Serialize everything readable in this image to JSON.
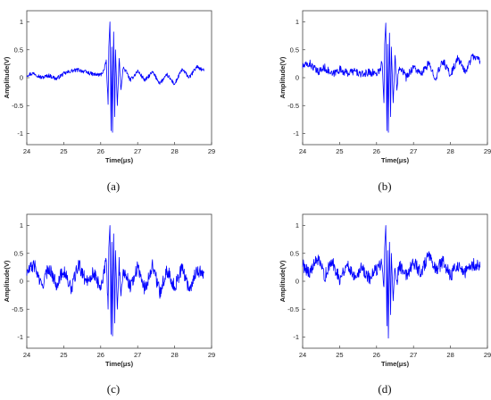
{
  "chart_data": [
    {
      "type": "line",
      "panel_label": "(a)",
      "xlabel": "Time(μs)",
      "ylabel": "Amplitude(V)",
      "xlim": [
        24,
        29
      ],
      "ylim": [
        -1.2,
        1.2
      ],
      "xticks": [
        "24",
        "25",
        "26",
        "27",
        "28",
        "29"
      ],
      "yticks": [
        "-1",
        "-0.5",
        "0",
        "0.5",
        "1"
      ],
      "grid": false,
      "series": [
        {
          "color": "#0000ff",
          "x": [
            24.0,
            24.2,
            24.4,
            24.6,
            24.8,
            25.0,
            25.2,
            25.4,
            25.6,
            25.8,
            26.0,
            26.1,
            26.15,
            26.2,
            26.22,
            26.25,
            26.28,
            26.3,
            26.32,
            26.35,
            26.38,
            26.4,
            26.45,
            26.5,
            26.55,
            26.6,
            26.7,
            26.8,
            27.0,
            27.2,
            27.4,
            27.6,
            27.8,
            28.0,
            28.2,
            28.4,
            28.6,
            28.8
          ],
          "y": [
            0.05,
            0.08,
            0.0,
            0.04,
            -0.02,
            0.07,
            0.12,
            0.14,
            0.1,
            0.06,
            0.05,
            0.15,
            0.3,
            -0.48,
            0.55,
            1.0,
            -0.95,
            0.55,
            -0.98,
            0.82,
            -0.7,
            0.5,
            -0.5,
            0.35,
            -0.25,
            0.18,
            0.1,
            -0.05,
            0.12,
            -0.05,
            0.1,
            -0.1,
            0.05,
            -0.12,
            0.15,
            0.0,
            0.2,
            0.12
          ]
        }
      ]
    },
    {
      "type": "line",
      "panel_label": "(b)",
      "xlabel": "Time(μs)",
      "ylabel": "Amplitude(V)",
      "xlim": [
        24,
        29
      ],
      "ylim": [
        -1.2,
        1.2
      ],
      "xticks": [
        "24",
        "25",
        "26",
        "27",
        "28",
        "29"
      ],
      "yticks": [
        "-1",
        "-0.5",
        "0",
        "0.5",
        "1"
      ],
      "grid": false,
      "series": [
        {
          "color": "#0000ff",
          "x": [
            24.0,
            24.2,
            24.4,
            24.6,
            24.8,
            25.0,
            25.2,
            25.4,
            25.6,
            25.8,
            26.0,
            26.1,
            26.15,
            26.2,
            26.22,
            26.25,
            26.28,
            26.3,
            26.32,
            26.35,
            26.38,
            26.4,
            26.45,
            26.5,
            26.55,
            26.6,
            26.7,
            26.8,
            27.0,
            27.2,
            27.4,
            27.6,
            27.8,
            28.0,
            28.2,
            28.4,
            28.6,
            28.8
          ],
          "y": [
            0.2,
            0.25,
            0.1,
            0.18,
            0.05,
            0.15,
            0.08,
            0.12,
            0.05,
            0.1,
            0.08,
            0.15,
            0.3,
            -0.45,
            0.6,
            0.98,
            -0.95,
            0.6,
            -0.98,
            0.8,
            -0.7,
            0.55,
            -0.45,
            0.38,
            -0.2,
            0.2,
            0.15,
            0.0,
            0.2,
            0.05,
            0.25,
            0.0,
            0.3,
            0.05,
            0.35,
            0.1,
            0.4,
            0.3
          ]
        }
      ]
    },
    {
      "type": "line",
      "panel_label": "(c)",
      "xlabel": "Time(μs)",
      "ylabel": "Amplitude(V)",
      "xlim": [
        24,
        29
      ],
      "ylim": [
        -1.2,
        1.2
      ],
      "xticks": [
        "24",
        "25",
        "26",
        "27",
        "28",
        "29"
      ],
      "yticks": [
        "-1",
        "-0.5",
        "0",
        "0.5",
        "1"
      ],
      "grid": false,
      "series": [
        {
          "color": "#0000ff",
          "x": [
            24.0,
            24.2,
            24.4,
            24.6,
            24.8,
            25.0,
            25.2,
            25.4,
            25.6,
            25.8,
            26.0,
            26.1,
            26.15,
            26.2,
            26.22,
            26.25,
            26.28,
            26.3,
            26.32,
            26.35,
            26.38,
            26.4,
            26.45,
            26.5,
            26.55,
            26.6,
            26.7,
            26.8,
            27.0,
            27.2,
            27.4,
            27.6,
            27.8,
            28.0,
            28.2,
            28.4,
            28.6,
            28.8
          ],
          "y": [
            0.15,
            0.3,
            -0.1,
            0.25,
            -0.05,
            0.2,
            -0.15,
            0.3,
            0.0,
            0.15,
            -0.1,
            0.2,
            0.35,
            -0.5,
            0.6,
            1.0,
            -0.95,
            0.7,
            -0.98,
            0.85,
            -0.75,
            0.55,
            -0.5,
            0.35,
            -0.3,
            0.2,
            0.1,
            -0.1,
            0.25,
            -0.15,
            0.3,
            -0.2,
            0.2,
            -0.1,
            0.25,
            -0.15,
            0.2,
            0.15
          ]
        }
      ]
    },
    {
      "type": "line",
      "panel_label": "(d)",
      "xlabel": "Time(μs)",
      "ylabel": "Amplitude(V)",
      "xlim": [
        24,
        29
      ],
      "ylim": [
        -1.2,
        1.2
      ],
      "xticks": [
        "24",
        "25",
        "26",
        "27",
        "28",
        "29"
      ],
      "yticks": [
        "-1",
        "-0.5",
        "0",
        "0.5",
        "1"
      ],
      "grid": false,
      "series": [
        {
          "color": "#0000ff",
          "x": [
            24.0,
            24.2,
            24.4,
            24.6,
            24.8,
            25.0,
            25.2,
            25.4,
            25.6,
            25.8,
            26.0,
            26.1,
            26.15,
            26.2,
            26.22,
            26.25,
            26.28,
            26.3,
            26.32,
            26.35,
            26.38,
            26.4,
            26.45,
            26.5,
            26.55,
            26.6,
            26.7,
            26.8,
            27.0,
            27.2,
            27.4,
            27.6,
            27.8,
            28.0,
            28.2,
            28.4,
            28.6,
            28.8
          ],
          "y": [
            0.3,
            0.15,
            0.4,
            0.1,
            0.35,
            0.05,
            0.3,
            0.1,
            0.25,
            0.05,
            0.2,
            0.3,
            0.4,
            -0.1,
            0.6,
            1.0,
            -0.8,
            0.55,
            -1.02,
            0.7,
            -0.6,
            0.5,
            -0.35,
            0.35,
            -0.1,
            0.3,
            0.2,
            0.1,
            0.35,
            0.15,
            0.45,
            0.2,
            0.35,
            0.1,
            0.3,
            0.15,
            0.3,
            0.25
          ]
        }
      ]
    }
  ]
}
